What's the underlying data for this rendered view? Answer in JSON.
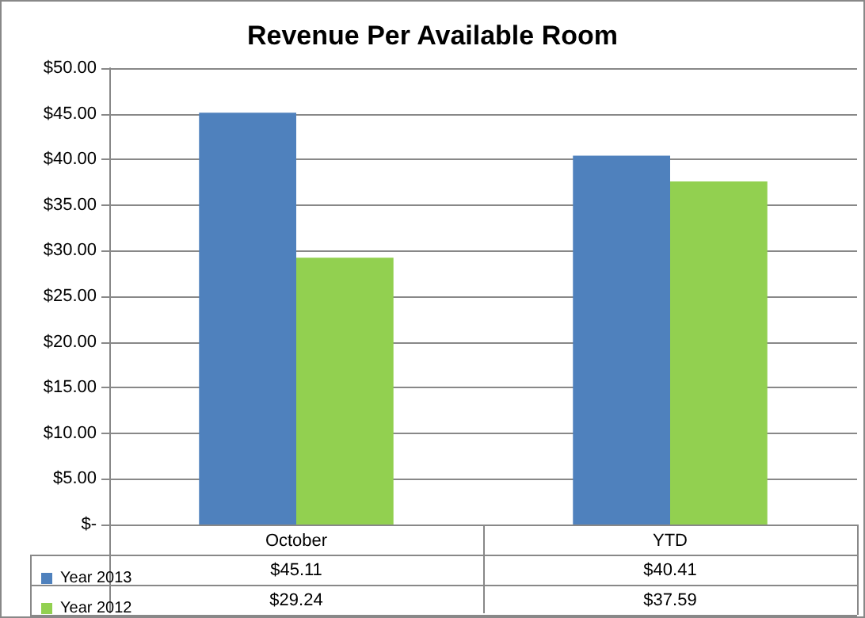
{
  "chart_data": {
    "type": "bar",
    "title": "Revenue Per Available Room",
    "categories": [
      "October",
      "YTD"
    ],
    "series": [
      {
        "name": "Year 2013",
        "color": "#4f81bd",
        "values": [
          45.11,
          40.41
        ],
        "value_labels": [
          "$45.11",
          "$40.41"
        ]
      },
      {
        "name": "Year 2012",
        "color": "#92d050",
        "values": [
          29.24,
          37.59
        ],
        "value_labels": [
          "$29.24",
          "$37.59"
        ]
      }
    ],
    "ylim": [
      0,
      50
    ],
    "yticks": [
      {
        "value": 0,
        "label": "$-"
      },
      {
        "value": 5,
        "label": "$5.00"
      },
      {
        "value": 10,
        "label": "$10.00"
      },
      {
        "value": 15,
        "label": "$15.00"
      },
      {
        "value": 20,
        "label": "$20.00"
      },
      {
        "value": 25,
        "label": "$25.00"
      },
      {
        "value": 30,
        "label": "$30.00"
      },
      {
        "value": 35,
        "label": "$35.00"
      },
      {
        "value": 40,
        "label": "$40.00"
      },
      {
        "value": 45,
        "label": "$45.00"
      },
      {
        "value": 50,
        "label": "$50.00"
      }
    ],
    "grid": "y",
    "legend": "bottom"
  }
}
